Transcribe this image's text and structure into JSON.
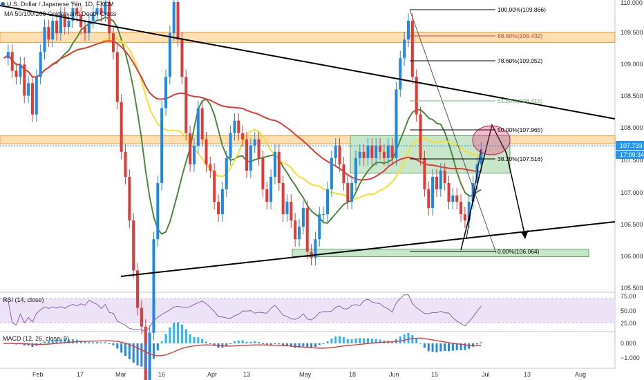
{
  "header": {
    "line1": "U.S. Dollar / Japanese Yen, 1D, FXCM",
    "line2": "MA 50/100/200 Golden and Death Cross"
  },
  "price_axis": {
    "ticks": [
      "110.000",
      "109.500",
      "109.000",
      "108.500",
      "108.000",
      "107.500",
      "107.000",
      "106.500",
      "106.000",
      "105.500"
    ],
    "last_price": "107.733",
    "countdown": "17:09:34"
  },
  "time_axis": {
    "labels": [
      "Feb",
      "17",
      "Mar",
      "16",
      "Apr",
      "13",
      "May",
      "18",
      "Jun",
      "15",
      "Jul",
      "13",
      "Aug"
    ]
  },
  "fib_levels": [
    {
      "label": "100.00%(109.866)",
      "color": "#000000"
    },
    {
      "label": "88.60%(109.432)",
      "color": "#e53935"
    },
    {
      "label": "78.60%(109.052)",
      "color": "#000000"
    },
    {
      "label": "61.80%(108.415)",
      "color": "#66bb6a"
    },
    {
      "label": "50.00%(107.965)",
      "color": "#000000"
    },
    {
      "label": "38.20%(107.516)",
      "color": "#000000"
    },
    {
      "label": "0.00%(106.064)",
      "color": "#000000"
    }
  ],
  "rsi": {
    "title": "RSI (14, close)",
    "ticks": [
      "75.00",
      "50.00",
      "25.00"
    ]
  },
  "macd": {
    "title": "MACD (12, 26, close, 9)",
    "ticks": [
      "0.000",
      "−1.000"
    ]
  },
  "chart_data": {
    "type": "candlestick",
    "title": "U.S. Dollar / Japanese Yen, 1D, FXCM",
    "ylim": [
      105.45,
      110.1
    ],
    "last_price": 107.733,
    "zones": [
      {
        "from": 109.45,
        "to": 109.62,
        "color": "#ffe0b2"
      },
      {
        "from": 107.83,
        "to": 107.96,
        "color": "#ffe0b2"
      },
      {
        "from": 107.36,
        "to": 107.96,
        "color": "#c8e6c9"
      },
      {
        "from": 106.02,
        "to": 106.14,
        "color": "#c8e6c9"
      }
    ],
    "ma": [
      {
        "name": "MA 50",
        "color": "#4a8a3a"
      },
      {
        "name": "MA 100",
        "color": "#f5e12a"
      },
      {
        "name": "MA 200",
        "color": "#e53935"
      }
    ],
    "closes": [
      109.2,
      109.3,
      109.0,
      108.9,
      109.1,
      108.6,
      108.8,
      108.3,
      108.9,
      109.3,
      109.7,
      109.5,
      109.8,
      109.6,
      109.9,
      109.7,
      109.8,
      110.0,
      109.9,
      109.7,
      109.6,
      109.8,
      109.9,
      110.0,
      109.9,
      110.1,
      109.6,
      109.3,
      108.5,
      107.7,
      107.3,
      106.6,
      105.8,
      105.2,
      104.9,
      103.9,
      104.8,
      106.3,
      107.2,
      108.4,
      108.9,
      109.6,
      110.1,
      109.5,
      108.9,
      108.0,
      107.5,
      107.8,
      108.4,
      107.9,
      107.5,
      107.4,
      106.9,
      106.7,
      107.1,
      107.6,
      108.0,
      108.2,
      108.0,
      107.9,
      107.4,
      107.8,
      107.9,
      107.6,
      107.1,
      106.9,
      107.3,
      107.7,
      107.2,
      106.7,
      106.9,
      106.6,
      106.3,
      106.5,
      106.8,
      106.1,
      106.0,
      106.3,
      106.7,
      106.7,
      107.1,
      107.6,
      107.8,
      107.5,
      107.2,
      106.9,
      107.2,
      107.6,
      107.7,
      107.6,
      107.8,
      107.6,
      107.8,
      107.7,
      107.6,
      107.8,
      107.6,
      108.7,
      109.2,
      109.5,
      109.8,
      108.9,
      108.3,
      107.6,
      107.1,
      106.8,
      107.3,
      107.1,
      107.4,
      107.2,
      106.9,
      107.0,
      106.9,
      106.7,
      106.6,
      106.9,
      107.2,
      107.5,
      107.733
    ]
  }
}
